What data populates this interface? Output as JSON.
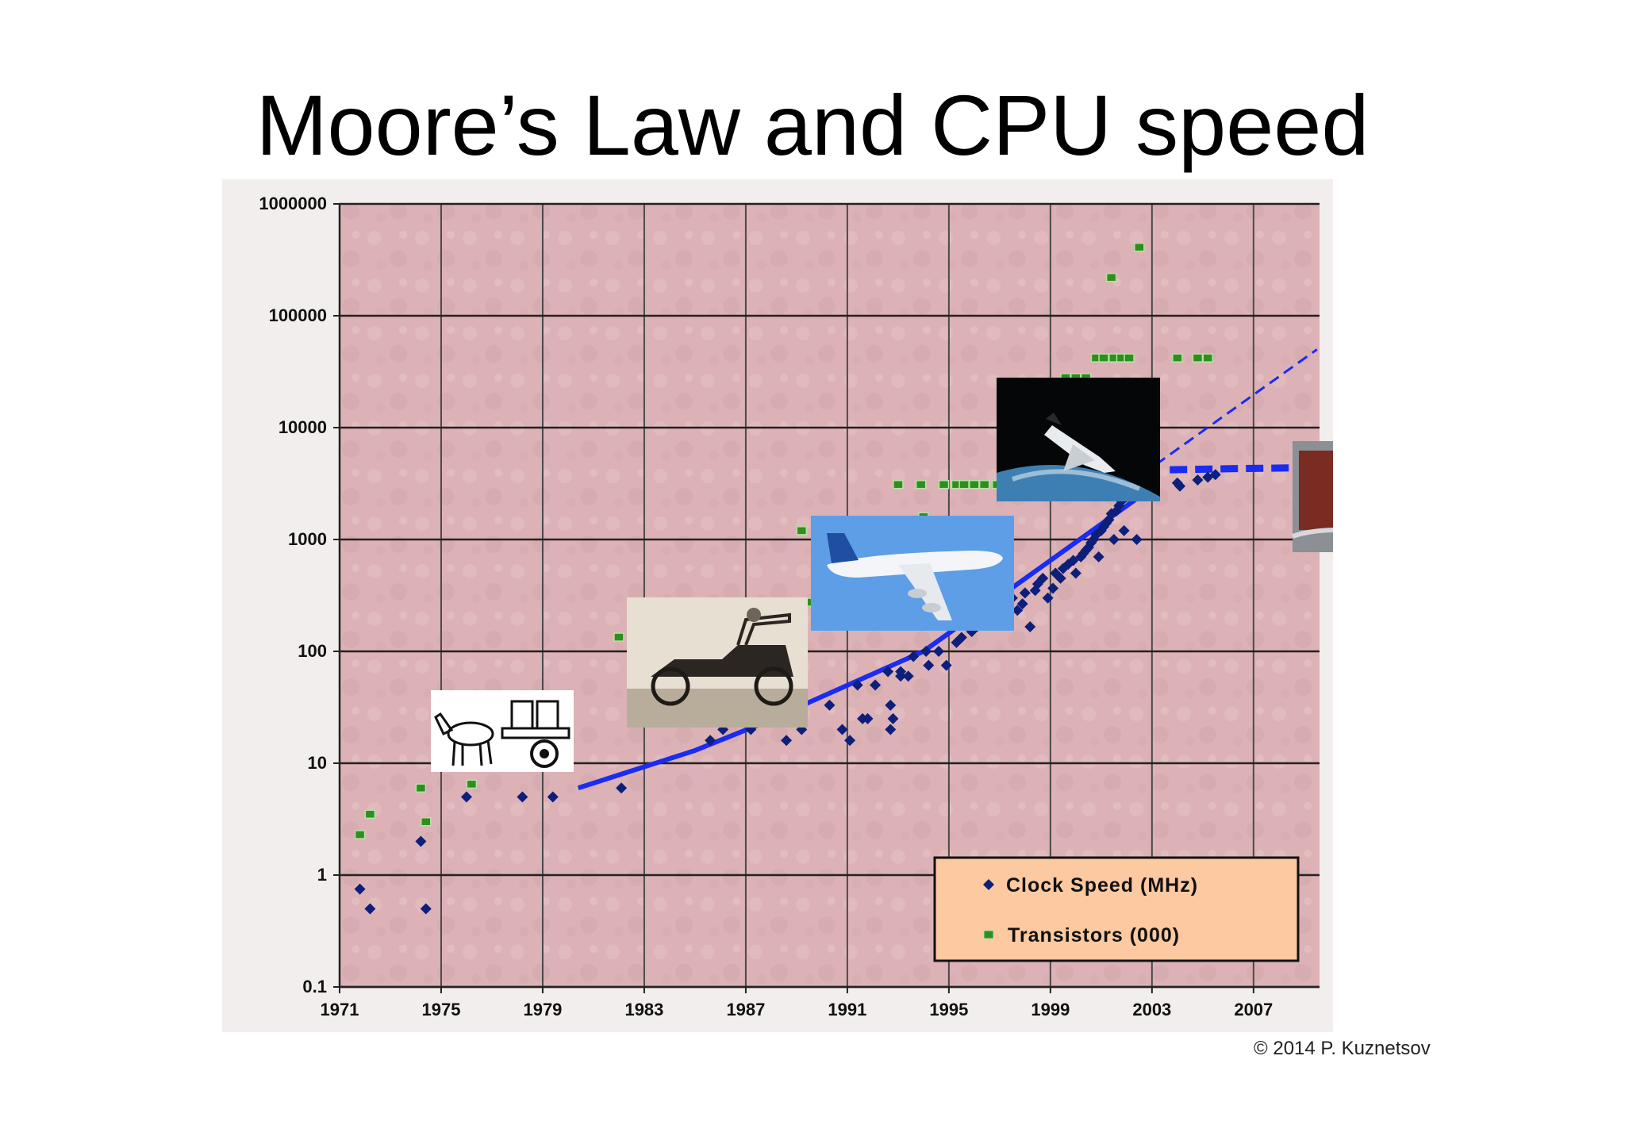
{
  "slide": {
    "title": "Moore’s Law and CPU speed",
    "copyright": "© 2014 P. Kuznetsov"
  },
  "colors": {
    "plot_bg": "#ddb4b8",
    "grid": "#4a4a4a",
    "clock": "#0d1f7a",
    "transistor": "#2d8f1e",
    "trend": "#1a2cf0",
    "legend_bg": "#fcc9a0"
  },
  "chart_data": {
    "type": "scatter",
    "title": "",
    "xlabel": "",
    "ylabel": "",
    "y_scale": "log",
    "xlim": [
      1971,
      2010
    ],
    "ylim": [
      0.1,
      1000000
    ],
    "x_ticks": [
      "1971",
      "1975",
      "1979",
      "1983",
      "1987",
      "1991",
      "1995",
      "1999",
      "2003",
      "2007"
    ],
    "y_ticks": [
      "1000000",
      "100000",
      "10000",
      "1000",
      "100",
      "10",
      "1",
      "0.1"
    ],
    "grid": true,
    "legend_position": "bottom-right",
    "legend": [
      "Clock Speed (MHz)",
      "Transistors (000)"
    ],
    "series": [
      {
        "name": "Clock Speed (MHz)",
        "marker": "diamond",
        "points": [
          [
            1971.8,
            0.75
          ],
          [
            1972.2,
            0.5
          ],
          [
            1974.2,
            2
          ],
          [
            1974.4,
            0.5
          ],
          [
            1976.0,
            5
          ],
          [
            1978.2,
            5
          ],
          [
            1979.4,
            5
          ],
          [
            1982.1,
            6
          ],
          [
            1985.6,
            16
          ],
          [
            1986.1,
            20
          ],
          [
            1987.2,
            20
          ],
          [
            1988.6,
            16
          ],
          [
            1989.2,
            20
          ],
          [
            1990.3,
            33
          ],
          [
            1990.8,
            20
          ],
          [
            1991.1,
            16
          ],
          [
            1991.4,
            50
          ],
          [
            1991.6,
            25
          ],
          [
            1991.8,
            25
          ],
          [
            1992.1,
            50
          ],
          [
            1992.6,
            66
          ],
          [
            1992.7,
            33
          ],
          [
            1992.8,
            25
          ],
          [
            1992.7,
            20
          ],
          [
            1993.1,
            60
          ],
          [
            1993.1,
            66
          ],
          [
            1993.4,
            60
          ],
          [
            1993.6,
            90
          ],
          [
            1994.1,
            100
          ],
          [
            1994.2,
            75
          ],
          [
            1994.6,
            100
          ],
          [
            1994.9,
            75
          ],
          [
            1995.3,
            120
          ],
          [
            1995.5,
            133
          ],
          [
            1995.9,
            150
          ],
          [
            1996.1,
            166
          ],
          [
            1996.3,
            200
          ],
          [
            1996.6,
            180
          ],
          [
            1996.9,
            200
          ],
          [
            1997.1,
            233
          ],
          [
            1997.3,
            266
          ],
          [
            1997.5,
            300
          ],
          [
            1997.7,
            233
          ],
          [
            1997.9,
            266
          ],
          [
            1998.0,
            333
          ],
          [
            1998.2,
            166
          ],
          [
            1998.4,
            350
          ],
          [
            1998.5,
            400
          ],
          [
            1998.7,
            450
          ],
          [
            1998.9,
            300
          ],
          [
            1999.1,
            366
          ],
          [
            1999.2,
            500
          ],
          [
            1999.4,
            450
          ],
          [
            1999.5,
            550
          ],
          [
            1999.7,
            600
          ],
          [
            1999.9,
            650
          ],
          [
            2000.0,
            500
          ],
          [
            2000.2,
            700
          ],
          [
            2000.3,
            750
          ],
          [
            2000.4,
            800
          ],
          [
            2000.5,
            850
          ],
          [
            2000.6,
            933
          ],
          [
            2000.7,
            1000
          ],
          [
            2000.8,
            1100
          ],
          [
            2000.9,
            700
          ],
          [
            2001.0,
            1200
          ],
          [
            2001.1,
            1300
          ],
          [
            2001.2,
            1400
          ],
          [
            2001.3,
            1500
          ],
          [
            2001.4,
            1700
          ],
          [
            2001.5,
            1000
          ],
          [
            2001.6,
            1800
          ],
          [
            2001.7,
            2000
          ],
          [
            2001.8,
            2200
          ],
          [
            2001.9,
            1200
          ],
          [
            2002.0,
            2400
          ],
          [
            2002.1,
            2530
          ],
          [
            2002.2,
            2800
          ],
          [
            2002.4,
            1000
          ],
          [
            2002.5,
            3060
          ],
          [
            2004.0,
            3200
          ],
          [
            2004.1,
            3000
          ],
          [
            2004.8,
            3400
          ],
          [
            2005.2,
            3600
          ],
          [
            2005.5,
            3800
          ]
        ]
      },
      {
        "name": "Transistors (000)",
        "marker": "square",
        "points": [
          [
            1971.8,
            2.3
          ],
          [
            1972.2,
            3.5
          ],
          [
            1974.2,
            6
          ],
          [
            1974.4,
            3
          ],
          [
            1976.2,
            6.5
          ],
          [
            1982.0,
            134
          ],
          [
            1985.6,
            275
          ],
          [
            1989.2,
            1200
          ],
          [
            1989.6,
            275
          ],
          [
            1993.0,
            3100
          ],
          [
            1993.9,
            3100
          ],
          [
            1994.0,
            1600
          ],
          [
            1994.8,
            3100
          ],
          [
            1995.3,
            3100
          ],
          [
            1995.6,
            3100
          ],
          [
            1996.0,
            3100
          ],
          [
            1996.4,
            3100
          ],
          [
            1996.9,
            3100
          ],
          [
            1997.4,
            7500
          ],
          [
            1998.0,
            7500
          ],
          [
            1999.3,
            9500
          ],
          [
            1999.6,
            28000
          ],
          [
            2000.0,
            28000
          ],
          [
            2000.4,
            28000
          ],
          [
            2000.8,
            42000
          ],
          [
            2001.1,
            42000
          ],
          [
            2001.5,
            42000
          ],
          [
            2001.8,
            42000
          ],
          [
            2002.1,
            42000
          ],
          [
            2001.4,
            220000
          ],
          [
            2002.5,
            410000
          ],
          [
            2004.0,
            42000
          ],
          [
            2004.8,
            42000
          ],
          [
            2005.2,
            42000
          ]
        ]
      }
    ],
    "trend_lines": [
      {
        "style": "solid",
        "points": [
          [
            1980.4,
            6
          ],
          [
            1985.0,
            13
          ],
          [
            1987.5,
            22
          ],
          [
            1994.0,
            100
          ],
          [
            2002.6,
            2500
          ]
        ]
      },
      {
        "style": "dashed",
        "points": [
          [
            2002.6,
            3800
          ],
          [
            2009.5,
            50000
          ]
        ]
      },
      {
        "style": "dashed-thick",
        "points": [
          [
            2003.7,
            4200
          ],
          [
            2006.3,
            4300
          ],
          [
            2009.6,
            4400
          ]
        ]
      }
    ],
    "images": [
      {
        "subject": "donkey-cart",
        "anchor": [
          1975.8,
          10
        ]
      },
      {
        "subject": "model-t-car",
        "anchor": [
          1987.6,
          60
        ]
      },
      {
        "subject": "airliner",
        "anchor": [
          1994.3,
          500
        ]
      },
      {
        "subject": "space-shuttle",
        "anchor": [
          2000.2,
          9000
        ]
      },
      {
        "subject": "motherboard-cpu",
        "anchor": [
          2010.5,
          2500
        ]
      }
    ]
  }
}
